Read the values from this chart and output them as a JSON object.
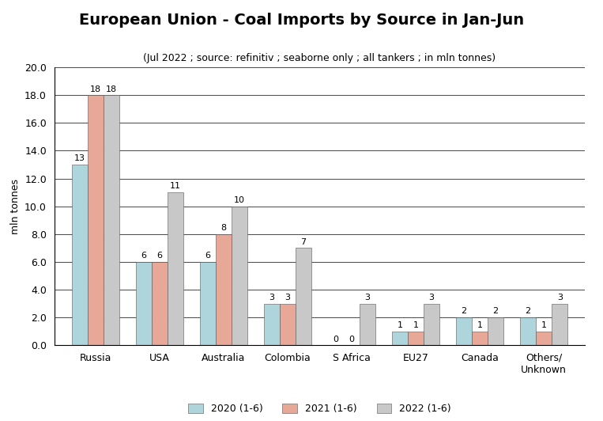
{
  "title": "European Union - Coal Imports by Source in Jan-Jun",
  "subtitle": "(Jul 2022 ; source: refinitiv ; seaborne only ; all tankers ; in mln tonnes)",
  "ylabel": "mln tonnes",
  "categories": [
    "Russia",
    "USA",
    "Australia",
    "Colombia",
    "S Africa",
    "EU27",
    "Canada",
    "Others/\nUnknown"
  ],
  "series": {
    "2020 (1-6)": [
      13,
      6,
      6,
      3,
      0,
      1,
      2,
      2
    ],
    "2021 (1-6)": [
      18,
      6,
      8,
      3,
      0,
      1,
      1,
      1
    ],
    "2022 (1-6)": [
      18,
      11,
      10,
      7,
      3,
      3,
      2,
      3
    ]
  },
  "colors": {
    "2020 (1-6)": "#aed4dc",
    "2021 (1-6)": "#e8a898",
    "2022 (1-6)": "#c8c8c8"
  },
  "ylim": [
    0,
    20.0
  ],
  "yticks": [
    0.0,
    2.0,
    4.0,
    6.0,
    8.0,
    10.0,
    12.0,
    14.0,
    16.0,
    18.0,
    20.0
  ],
  "background_color": "#ffffff",
  "grid_color": "#000000",
  "bar_edge_color": "#555555",
  "bar_edge_width": 0.4,
  "title_fontsize": 14,
  "subtitle_fontsize": 9,
  "label_fontsize": 9,
  "tick_fontsize": 9,
  "legend_fontsize": 9,
  "value_fontsize": 8
}
